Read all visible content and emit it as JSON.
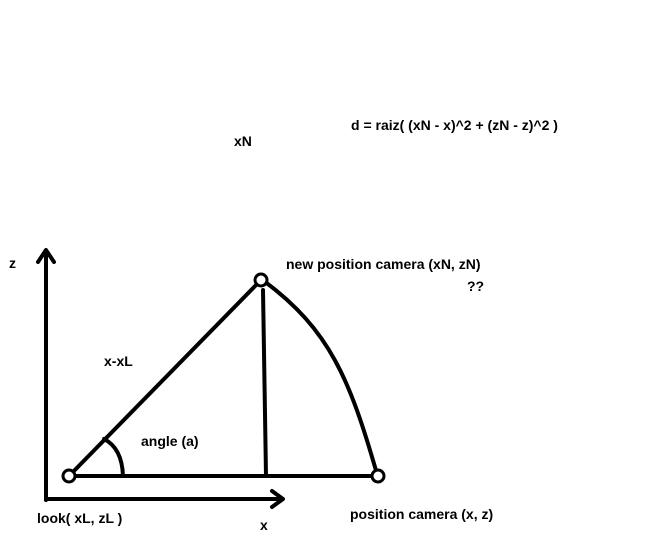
{
  "labels": {
    "formula": "d = raiz( (xN - x)^2 + (zN - z)^2 )",
    "xn": "xN",
    "z_axis": "z",
    "x_axis": "x",
    "new_position": "new position camera (xN, zN)",
    "question": "??",
    "x_minus_xl": "x-xL",
    "angle": "angle (a)",
    "look": "look( xL, zL )",
    "position": "position camera  (x, z)"
  },
  "colors": {
    "ink": "#000000",
    "background": "#ffffff"
  }
}
